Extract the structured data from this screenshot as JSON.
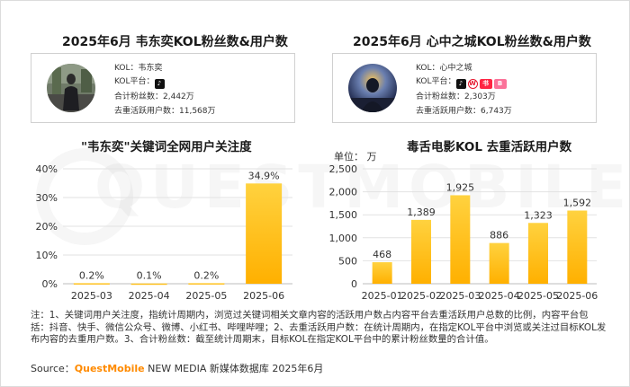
{
  "left": {
    "title": "2025年6月 韦东奕KOL粉丝数&用户数",
    "kol_label": "KOL：",
    "kol_name": "韦东奕",
    "platform_label": "KOL平台：",
    "fans_label": "合计粉丝数：",
    "fans_value": "2,442万",
    "users_label": "去重活跃用户数：",
    "users_value": "11,568万"
  },
  "right": {
    "title": "2025年6月 心中之城KOL粉丝数&用户数",
    "kol_label": "KOL：",
    "kol_name": "心中之城",
    "platform_label": "KOL平台：",
    "fans_label": "合计粉丝数：",
    "fans_value": "2,303万",
    "users_label": "去重活跃用户数：",
    "users_value": "6,743万"
  },
  "chart_data": [
    {
      "type": "bar",
      "title": "\"韦东奕\"关键词全网用户关注度",
      "categories": [
        "2025-03",
        "2025-04",
        "2025-05",
        "2025-06"
      ],
      "values": [
        0.2,
        0.1,
        0.2,
        34.9
      ],
      "value_labels": [
        "0.2%",
        "0.1%",
        "0.2%",
        "34.9%"
      ],
      "ylim": [
        0,
        40
      ],
      "yticks": [
        0,
        10,
        20,
        30,
        40
      ],
      "ytick_labels": [
        "0%",
        "10%",
        "20%",
        "30%",
        "40%"
      ],
      "xlabel": "",
      "ylabel": "",
      "grid": true
    },
    {
      "type": "bar",
      "title": "毒舌电影KOL 去重活跃用户数",
      "unit_label": "单位： 万",
      "categories": [
        "2025-01",
        "2025-02",
        "2025-03",
        "2025-04",
        "2025-05",
        "2025-06"
      ],
      "values": [
        468,
        1389,
        1925,
        886,
        1323,
        1592
      ],
      "value_labels": [
        "468",
        "1,389",
        "1,925",
        "886",
        "1,323",
        "1,592"
      ],
      "ylim": [
        0,
        2500
      ],
      "yticks": [
        0,
        500,
        1000,
        1500,
        2000,
        2500
      ],
      "ytick_labels": [
        "0",
        "500",
        "1,000",
        "1,500",
        "2,000",
        "2,500"
      ],
      "xlabel": "",
      "ylabel": "",
      "grid": true
    }
  ],
  "colors": {
    "bar_top": "#ffd23f",
    "bar_bottom": "#ffb000",
    "grid": "#e2e2e2",
    "douyin": "#111111",
    "weibo": "#e6162d",
    "xiaohongshu": "#ff2442",
    "bilibili": "#fb7299",
    "brand": "#ff8a00"
  },
  "icons": {
    "left_platforms": [
      "douyin-icon"
    ],
    "right_platforms": [
      "douyin-icon",
      "weibo-icon",
      "xiaohongshu-icon",
      "bilibili-icon"
    ]
  },
  "note": "注：1、关键词用户关注度，指统计周期内，浏览过关键词相关文章内容的活跃用户数占内容平台去重活跃用户总数的比例，内容平台包括：抖音、快手、微信公众号、微博、小红书、哔哩哔哩；2、去重活跃用户数：在统计周期内，在指定KOL平台中浏览或关注过目标KOL发布内容的去重用户数。3、合计粉丝数：截至统计周期末，目标KOL在指定KOL平台中的累计粉丝数量的合计值。",
  "source": {
    "label": "Source：",
    "brand": "QuestMobile",
    "rest": " NEW MEDIA 新媒体数据库 2025年6月"
  },
  "watermark": "QUESTMOBILE"
}
